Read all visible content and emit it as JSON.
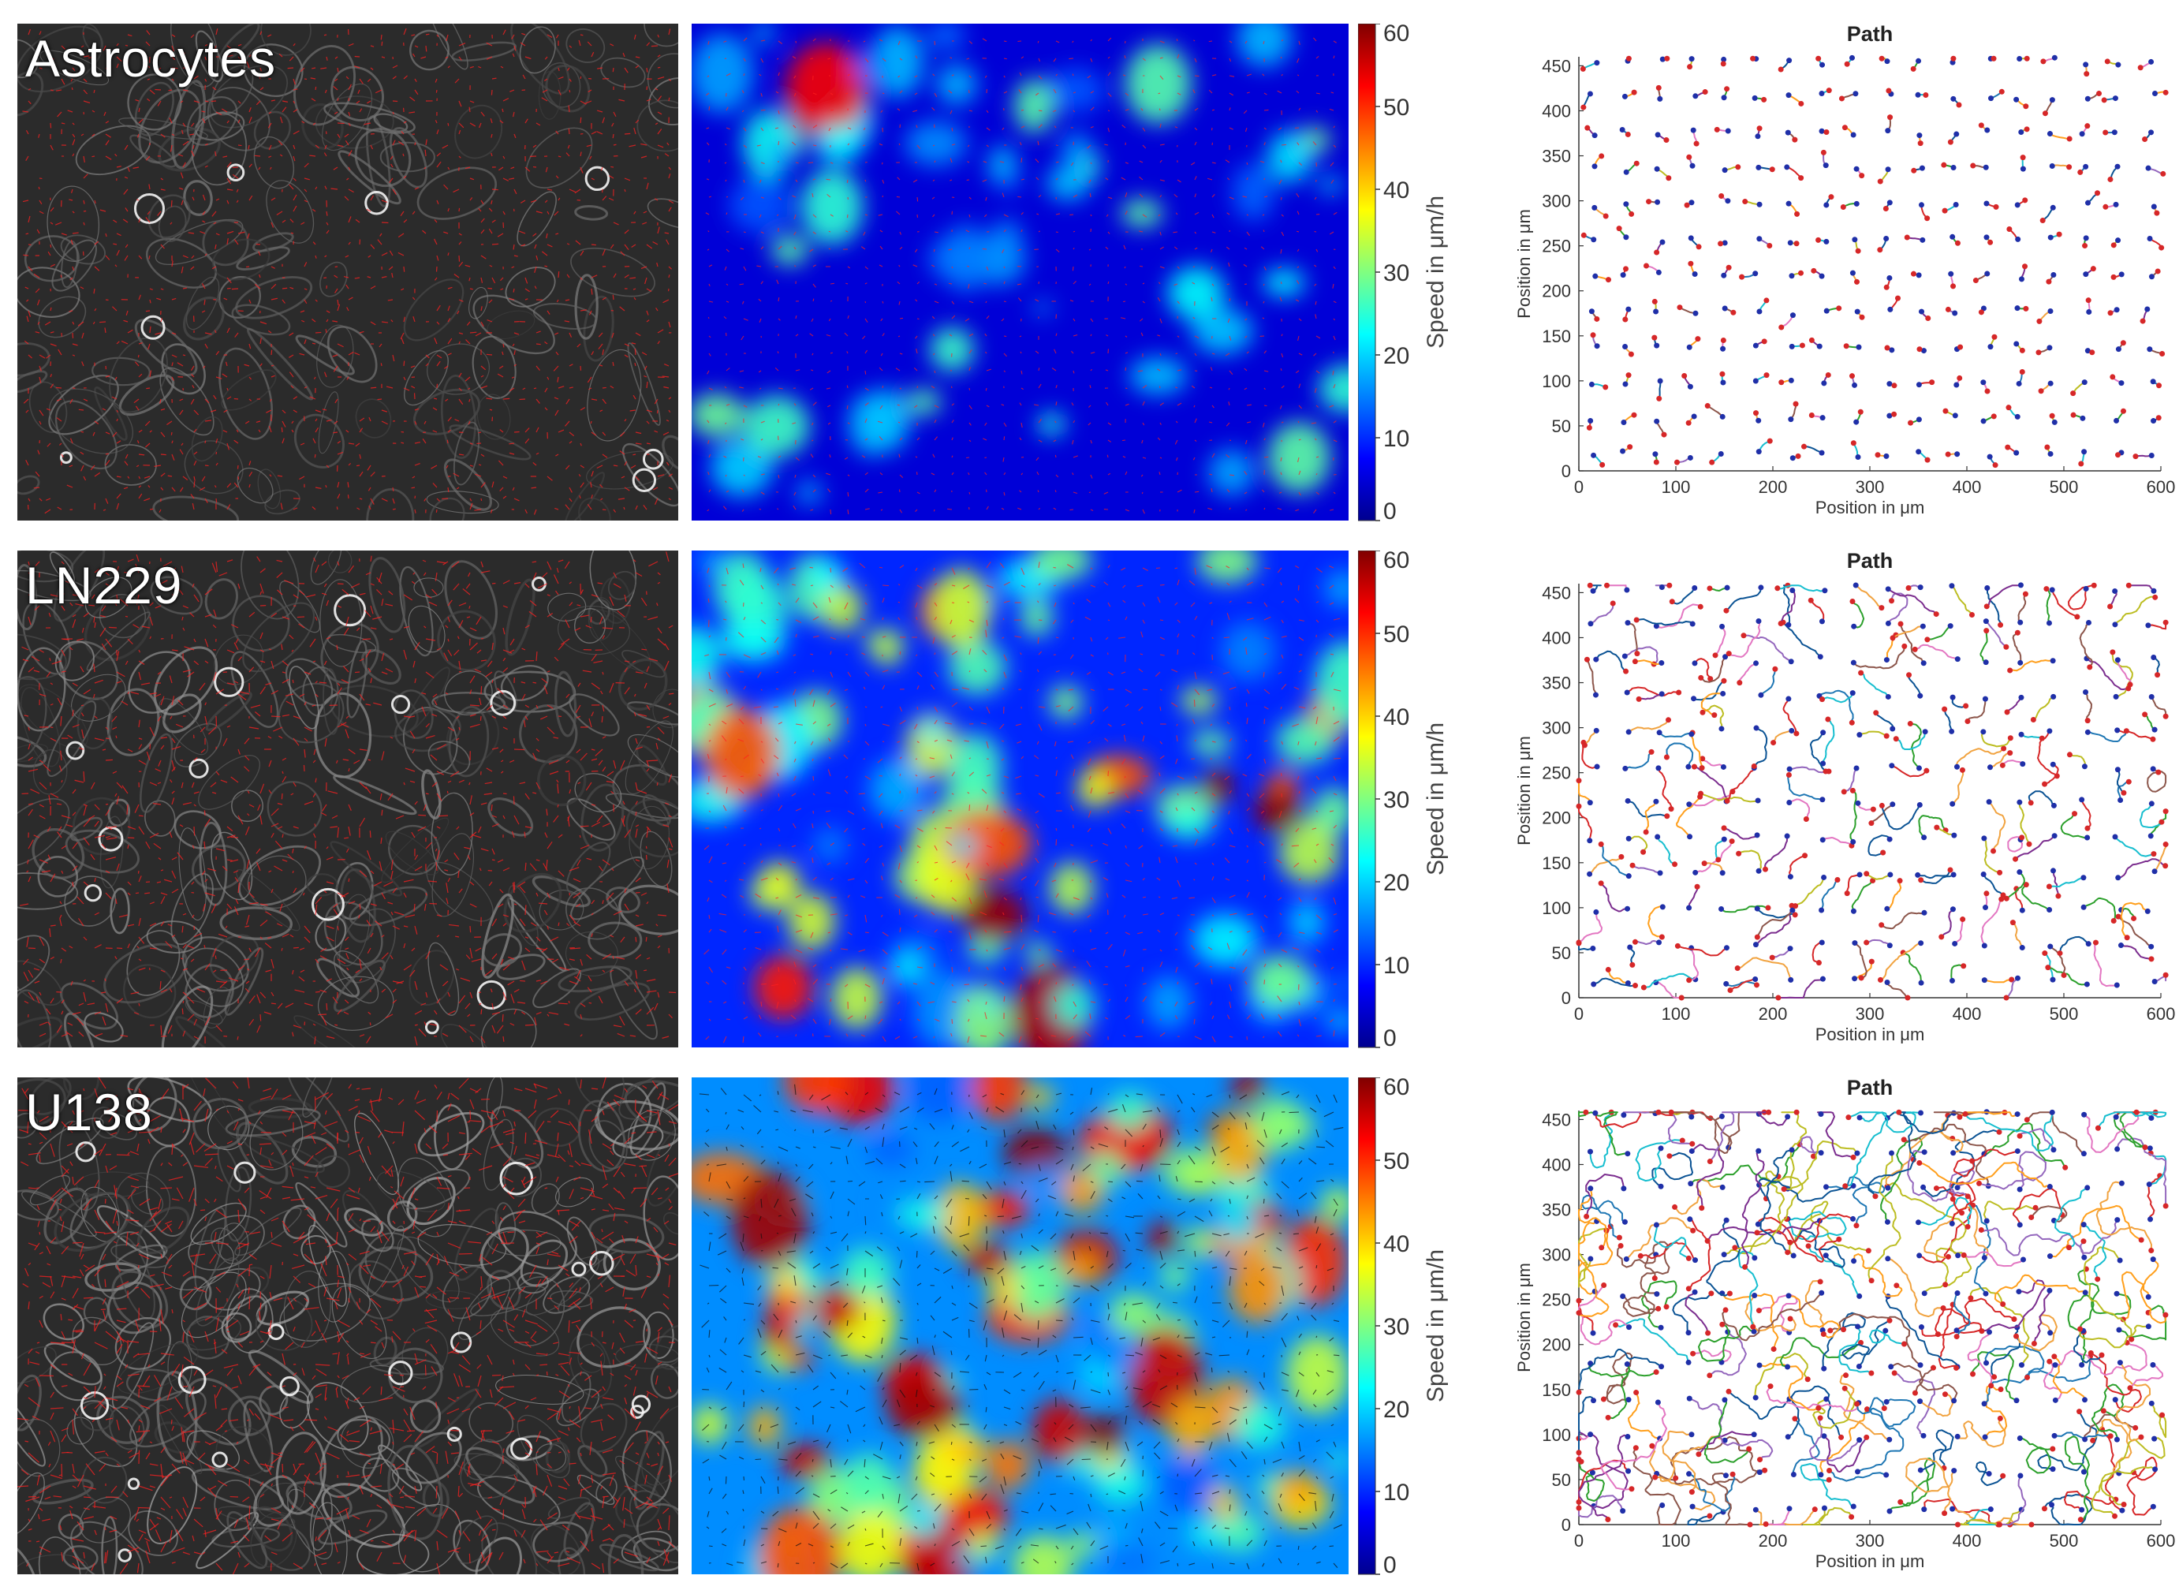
{
  "figure": {
    "rows": [
      {
        "id": "astrocytes",
        "label": "Astrocytes",
        "intensity": 0.12,
        "tortuosity": 0.25,
        "track_length": 4,
        "hot_fraction": 0.02
      },
      {
        "id": "ln229",
        "label": "LN229",
        "intensity": 0.45,
        "tortuosity": 0.6,
        "track_length": 12,
        "hot_fraction": 0.1
      },
      {
        "id": "u138",
        "label": "U138",
        "intensity": 0.85,
        "tortuosity": 0.9,
        "track_length": 26,
        "hot_fraction": 0.3
      }
    ],
    "colorbar": {
      "label": "Speed in μm/h",
      "ticks": [
        "0",
        "10",
        "20",
        "30",
        "40",
        "50",
        "60"
      ],
      "range": [
        0,
        60
      ],
      "colormap": [
        "#00008f",
        "#0000ff",
        "#0080ff",
        "#00ffff",
        "#80ff80",
        "#ffff00",
        "#ff8000",
        "#ff0000",
        "#800000"
      ]
    },
    "path_plot": {
      "title": "Path",
      "xlabel": "Position in μm",
      "ylabel": "Position in μm",
      "xticks": [
        "0",
        "100",
        "200",
        "300",
        "400",
        "500",
        "600"
      ],
      "yticks": [
        "0",
        "50",
        "100",
        "150",
        "200",
        "250",
        "300",
        "350",
        "400",
        "450"
      ],
      "xlim": [
        0,
        600
      ],
      "ylim": [
        0,
        460
      ],
      "track_colors": [
        "#7b2d8e",
        "#1f77b4",
        "#2ca02c",
        "#d62728",
        "#ff9f1c",
        "#17becf",
        "#8c564b",
        "#9467bd",
        "#bcbd22",
        "#0b5394",
        "#e377c2",
        "#f1a340"
      ],
      "marker_start_color": "#1f2fa8",
      "marker_end_color": "#d62728"
    },
    "colors": {
      "arrow_red": "#ff2020",
      "arrow_dark": "#101010"
    }
  }
}
